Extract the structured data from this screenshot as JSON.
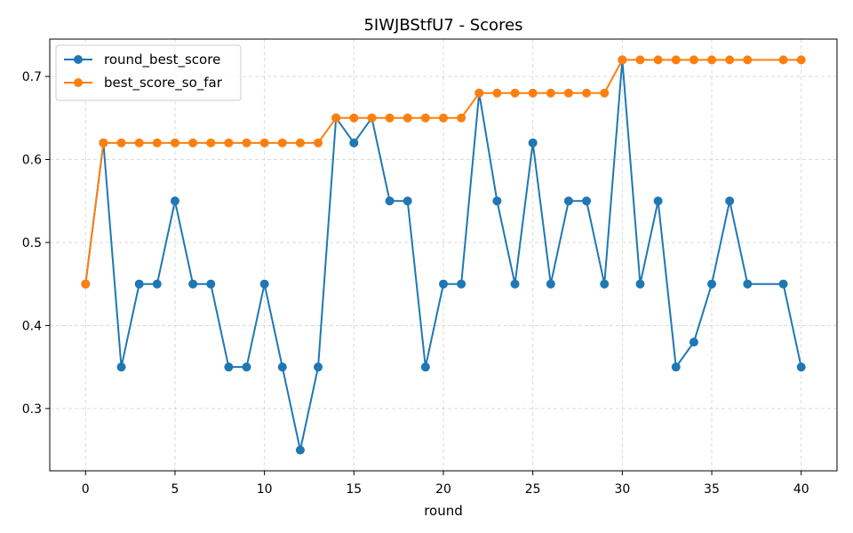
{
  "chart_data": {
    "type": "line",
    "title": "5IWJBStfU7 - Scores",
    "xlabel": "round",
    "ylabel": "",
    "xlim": [
      -2,
      42
    ],
    "ylim": [
      0.225,
      0.745
    ],
    "xticks": [
      0,
      5,
      10,
      15,
      20,
      25,
      30,
      35,
      40
    ],
    "yticks": [
      0.3,
      0.4,
      0.5,
      0.6,
      0.7
    ],
    "grid": true,
    "legend_position": "top-left",
    "series": [
      {
        "name": "round_best_score",
        "color": "#1f77b4",
        "x": [
          0,
          1,
          2,
          3,
          4,
          5,
          6,
          7,
          8,
          9,
          10,
          11,
          12,
          13,
          14,
          15,
          16,
          17,
          18,
          19,
          20,
          21,
          22,
          23,
          24,
          25,
          26,
          27,
          28,
          29,
          30,
          31,
          32,
          33,
          34,
          35,
          36,
          37,
          39,
          40
        ],
        "values": [
          0.45,
          0.62,
          0.35,
          0.45,
          0.45,
          0.55,
          0.45,
          0.45,
          0.35,
          0.35,
          0.45,
          0.35,
          0.25,
          0.35,
          0.65,
          0.62,
          0.65,
          0.55,
          0.55,
          0.35,
          0.45,
          0.45,
          0.68,
          0.55,
          0.45,
          0.62,
          0.45,
          0.55,
          0.55,
          0.45,
          0.72,
          0.45,
          0.55,
          0.35,
          0.38,
          0.45,
          0.55,
          0.45,
          0.45,
          0.35
        ]
      },
      {
        "name": "best_score_so_far",
        "color": "#ff7f0e",
        "x": [
          0,
          1,
          2,
          3,
          4,
          5,
          6,
          7,
          8,
          9,
          10,
          11,
          12,
          13,
          14,
          15,
          16,
          17,
          18,
          19,
          20,
          21,
          22,
          23,
          24,
          25,
          26,
          27,
          28,
          29,
          30,
          31,
          32,
          33,
          34,
          35,
          36,
          37,
          39,
          40
        ],
        "values": [
          0.45,
          0.62,
          0.62,
          0.62,
          0.62,
          0.62,
          0.62,
          0.62,
          0.62,
          0.62,
          0.62,
          0.62,
          0.62,
          0.62,
          0.65,
          0.65,
          0.65,
          0.65,
          0.65,
          0.65,
          0.65,
          0.65,
          0.68,
          0.68,
          0.68,
          0.68,
          0.68,
          0.68,
          0.68,
          0.68,
          0.72,
          0.72,
          0.72,
          0.72,
          0.72,
          0.72,
          0.72,
          0.72,
          0.72,
          0.72
        ]
      }
    ]
  }
}
